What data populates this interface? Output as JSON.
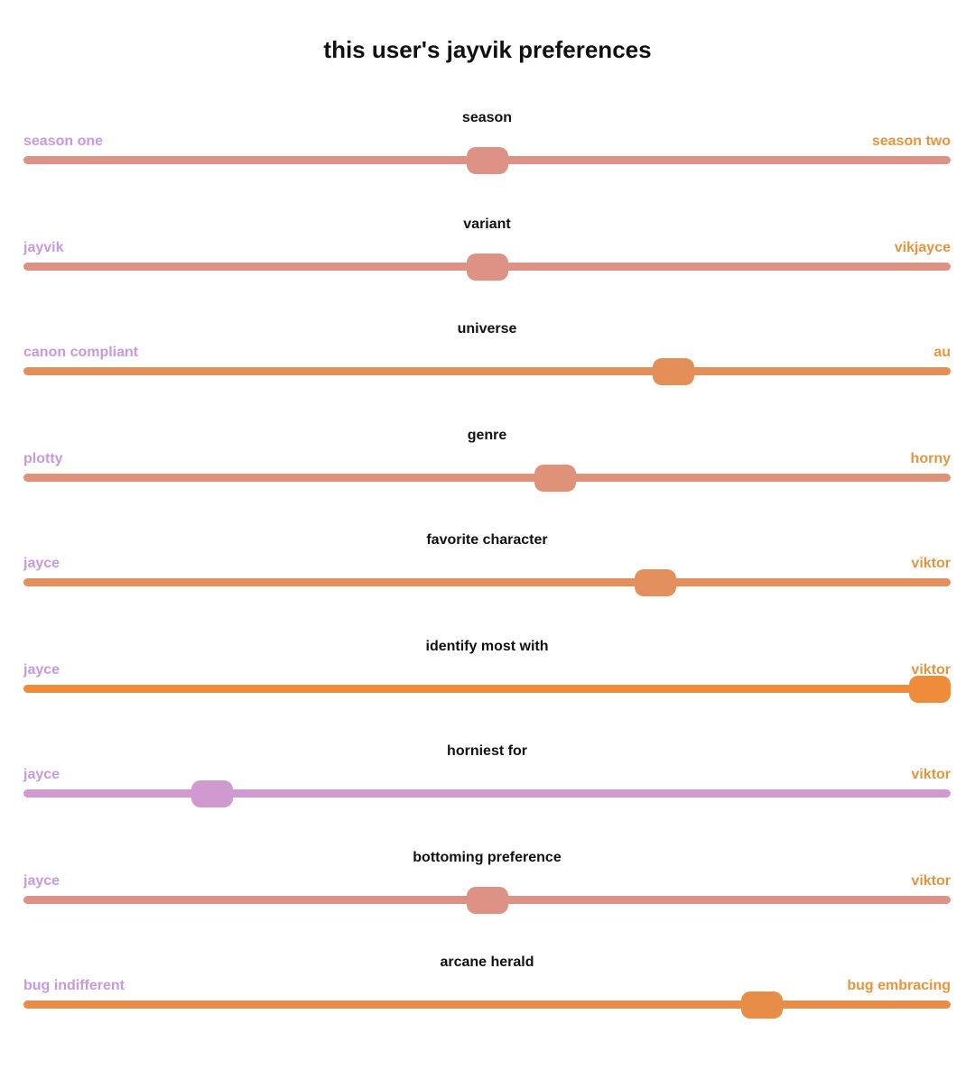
{
  "page": {
    "title": "this user's jayvik preferences"
  },
  "sliders": [
    {
      "title": "season",
      "left": "season one",
      "right": "season two",
      "value": 0.5,
      "color": "#dd9285"
    },
    {
      "title": "variant",
      "left": "jayvik",
      "right": "vikjayce",
      "value": 0.5,
      "color": "#dd9285"
    },
    {
      "title": "universe",
      "left": "canon compliant",
      "right": "au",
      "value": 0.71,
      "color": "#e48f58"
    },
    {
      "title": "genre",
      "left": "plotty",
      "right": "horny",
      "value": 0.577,
      "color": "#df9278"
    },
    {
      "title": "favorite character",
      "left": "jayce",
      "right": "viktor",
      "value": 0.69,
      "color": "#e4905e"
    },
    {
      "title": "identify most with",
      "left": "jayce",
      "right": "viktor",
      "value": 1.0,
      "color": "#ef8c39"
    },
    {
      "title": "horniest for",
      "left": "jayce",
      "right": "viktor",
      "value": 0.19,
      "color": "#d09ad0"
    },
    {
      "title": "bottoming preference",
      "left": "jayce",
      "right": "viktor",
      "value": 0.5,
      "color": "#dd9285"
    },
    {
      "title": "arcane herald",
      "left": "bug indifferent",
      "right": "bug embracing",
      "value": 0.81,
      "color": "#e88d47"
    }
  ]
}
